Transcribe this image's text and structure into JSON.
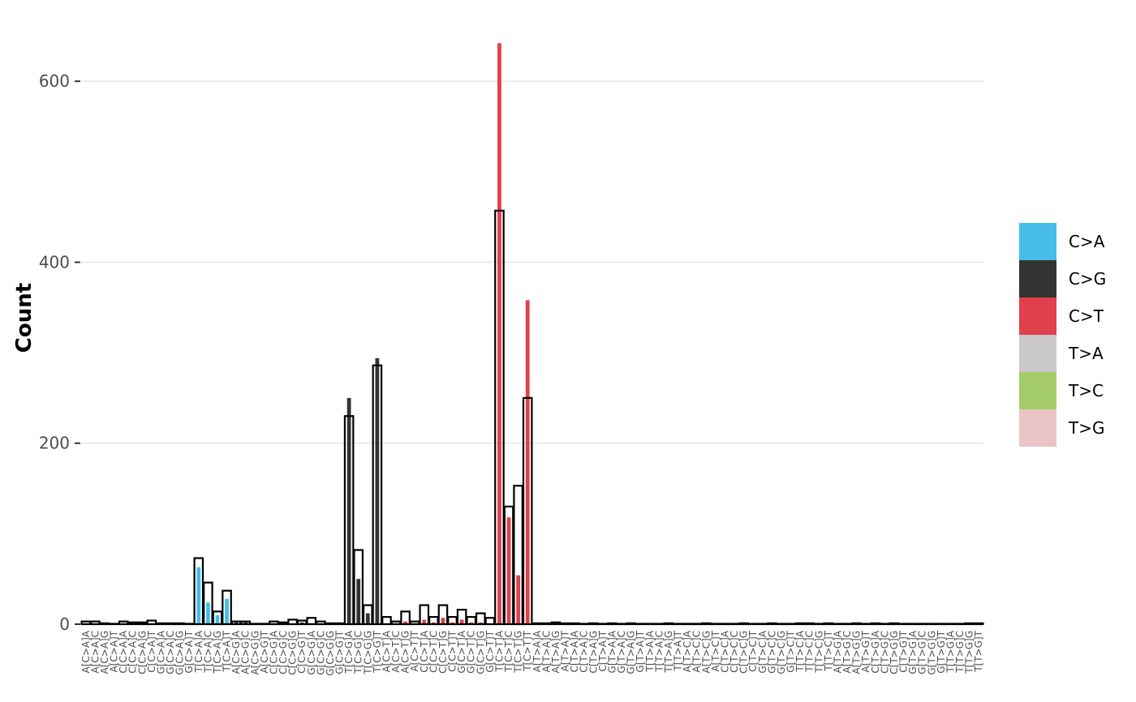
{
  "chart_data": {
    "type": "bar",
    "title": "",
    "xlabel": "",
    "ylabel": "Count",
    "ylim": [
      0,
      645
    ],
    "y_ticks": [
      0,
      200,
      400,
      600
    ],
    "y_tick_labels": [
      "0",
      "200",
      "400",
      "600"
    ],
    "grid": true,
    "legend_position": "right",
    "categories": [
      "A[C>A]A",
      "A[C>A]C",
      "A[C>A]G",
      "A[C>A]T",
      "C[C>A]A",
      "C[C>A]C",
      "C[C>A]G",
      "C[C>A]T",
      "G[C>A]A",
      "G[C>A]C",
      "G[C>A]G",
      "G[C>A]T",
      "T[C>A]A",
      "T[C>A]C",
      "T[C>A]G",
      "T[C>A]T",
      "A[C>G]A",
      "A[C>G]C",
      "A[C>G]G",
      "A[C>G]T",
      "C[C>G]A",
      "C[C>G]C",
      "C[C>G]G",
      "C[C>G]T",
      "G[C>G]A",
      "G[C>G]C",
      "G[C>G]G",
      "G[C>G]T",
      "T[C>G]A",
      "T[C>G]C",
      "T[C>G]G",
      "T[C>G]T",
      "A[C>T]A",
      "A[C>T]C",
      "A[C>T]G",
      "A[C>T]T",
      "C[C>T]A",
      "C[C>T]C",
      "C[C>T]G",
      "C[C>T]T",
      "G[C>T]A",
      "G[C>T]C",
      "G[C>T]G",
      "G[C>T]T",
      "T[C>T]A",
      "T[C>T]C",
      "T[C>T]G",
      "T[C>T]T",
      "A[T>A]A",
      "A[T>A]C",
      "A[T>A]G",
      "A[T>A]T",
      "C[T>A]A",
      "C[T>A]C",
      "C[T>A]G",
      "C[T>A]T",
      "G[T>A]A",
      "G[T>A]C",
      "G[T>A]G",
      "G[T>A]T",
      "T[T>A]A",
      "T[T>A]C",
      "T[T>A]G",
      "T[T>A]T",
      "A[T>C]A",
      "A[T>C]C",
      "A[T>C]G",
      "A[T>C]T",
      "C[T>C]A",
      "C[T>C]C",
      "C[T>C]G",
      "C[T>C]T",
      "G[T>C]A",
      "G[T>C]C",
      "G[T>C]G",
      "G[T>C]T",
      "T[T>C]A",
      "T[T>C]C",
      "T[T>C]G",
      "T[T>C]T",
      "A[T>G]A",
      "A[T>G]C",
      "A[T>G]G",
      "A[T>G]T",
      "C[T>G]A",
      "C[T>G]C",
      "C[T>G]G",
      "C[T>G]T",
      "G[T>G]A",
      "G[T>G]C",
      "G[T>G]G",
      "G[T>G]T",
      "T[T>G]A",
      "T[T>G]C",
      "T[T>G]G",
      "T[T>G]T"
    ],
    "legend": [
      {
        "label": "C>A",
        "color": "#46bde9"
      },
      {
        "label": "C>G",
        "color": "#333333"
      },
      {
        "label": "C>T",
        "color": "#e1404d"
      },
      {
        "label": "T>A",
        "color": "#c9c7c7"
      },
      {
        "label": "T>C",
        "color": "#a4cd6a"
      },
      {
        "label": "T>G",
        "color": "#eac4c4"
      }
    ],
    "filled_values": [
      1,
      1,
      0,
      0,
      1,
      1,
      1,
      1,
      0,
      0,
      0,
      0,
      63,
      24,
      10,
      28,
      2,
      2,
      1,
      0,
      1,
      1,
      1,
      2,
      1,
      0,
      0,
      1,
      250,
      50,
      12,
      294,
      1,
      1,
      3,
      1,
      5,
      2,
      7,
      2,
      5,
      2,
      2,
      0,
      642,
      118,
      54,
      358,
      0,
      1,
      0,
      0,
      0,
      0,
      0,
      0,
      0,
      0,
      0,
      0,
      0,
      0,
      0,
      0,
      0,
      0,
      1,
      0,
      0,
      0,
      0,
      0,
      0,
      0,
      0,
      1,
      0,
      0,
      0,
      0,
      0,
      0,
      0,
      0,
      0,
      0,
      0,
      0,
      0,
      0,
      0,
      0,
      0,
      0,
      0,
      0
    ],
    "outline_values": [
      3,
      3,
      1,
      0,
      3,
      2,
      2,
      4,
      1,
      1,
      1,
      0,
      73,
      46,
      14,
      37,
      3,
      3,
      0,
      0,
      3,
      2,
      5,
      4,
      7,
      3,
      1,
      1,
      230,
      82,
      21,
      286,
      8,
      3,
      14,
      3,
      21,
      8,
      21,
      8,
      16,
      8,
      12,
      7,
      457,
      130,
      153,
      250,
      1,
      1,
      2,
      1,
      1,
      0,
      1,
      0,
      1,
      0,
      1,
      0,
      0,
      0,
      1,
      0,
      0,
      0,
      1,
      0,
      0,
      0,
      1,
      0,
      0,
      1,
      0,
      0,
      1,
      1,
      0,
      1,
      0,
      0,
      1,
      0,
      1,
      0,
      1,
      0,
      0,
      0,
      0,
      0,
      0,
      0,
      1,
      1
    ]
  }
}
